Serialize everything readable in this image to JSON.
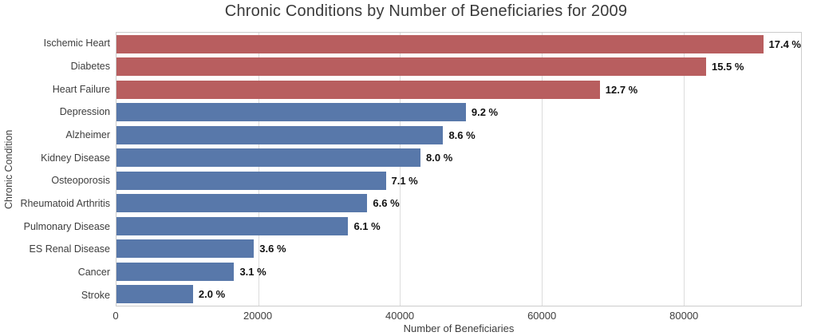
{
  "chart_data": {
    "type": "bar",
    "orientation": "horizontal",
    "title": "Chronic Conditions by Number of Beneficiaries for 2009",
    "xlabel": "Number of Beneficiaries",
    "ylabel": "Chronic Condition",
    "categories": [
      "Ischemic Heart",
      "Diabetes",
      "Heart Failure",
      "Depression",
      "Alzheimer",
      "Kidney Disease",
      "Osteoporosis",
      "Rheumatoid Arthritis",
      "Pulmonary Disease",
      "ES Renal Disease",
      "Cancer",
      "Stroke"
    ],
    "values": [
      93300,
      83200,
      68200,
      49300,
      46100,
      42900,
      38000,
      35400,
      32700,
      19400,
      16600,
      10800
    ],
    "percents": [
      17.4,
      15.5,
      12.7,
      9.2,
      8.6,
      8.0,
      7.1,
      6.6,
      6.1,
      3.6,
      3.1,
      2.0
    ],
    "percent_labels": [
      "17.4 %",
      "15.5 %",
      "12.7 %",
      "9.2 %",
      "8.6 %",
      "8.0 %",
      "7.1 %",
      "6.6 %",
      "6.1 %",
      "3.6 %",
      "3.1 %",
      "2.0 %"
    ],
    "bar_colors": [
      "#b85e5f",
      "#b85e5f",
      "#b85e5f",
      "#5878aa",
      "#5878aa",
      "#5878aa",
      "#5878aa",
      "#5878aa",
      "#5878aa",
      "#5878aa",
      "#5878aa",
      "#5878aa"
    ],
    "xlim": [
      0,
      96600
    ],
    "xticks": [
      0,
      20000,
      40000,
      60000,
      80000
    ],
    "xtick_labels": [
      "0",
      "20000",
      "40000",
      "60000",
      "80000"
    ],
    "grid": true,
    "legend": "none",
    "colors": {
      "highlight": "#b85e5f",
      "base": "#5878aa",
      "grid": "#dcdcdc",
      "plot_border": "#cccccc",
      "value_label": "#111111",
      "axis_text": "#3d3d3d",
      "title_text": "#3a3a3a"
    }
  }
}
